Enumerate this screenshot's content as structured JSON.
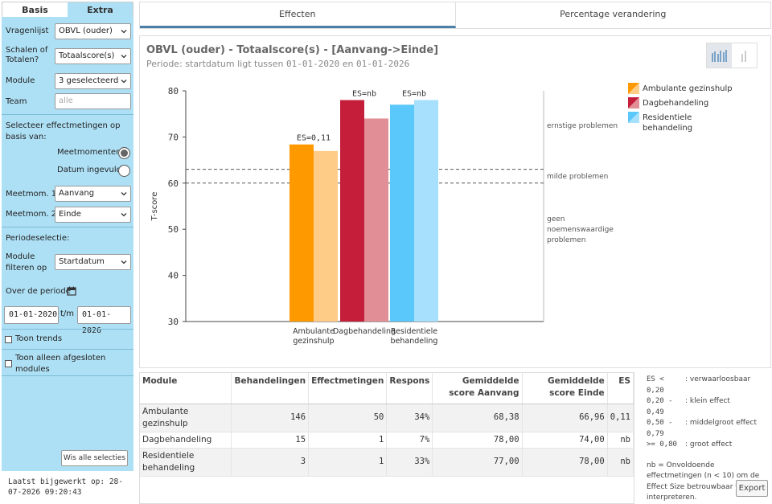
{
  "sidebar": {
    "tabs": [
      "Basis",
      "Extra"
    ],
    "vragenlijst_label": "Vragenlijst",
    "vragenlijst_value": "OBVL (ouder)",
    "schalen_label": "Schalen of Totalen?",
    "schalen_value": "Totaalscore(s)",
    "module_label": "Module",
    "module_value": "3 geselecteerd",
    "team_label": "Team",
    "team_placeholder": "alle",
    "effect_basis_label": "Selecteer effectmetingen op basis van:",
    "radio_meetmomenten": "Meetmomenten",
    "radio_datum": "Datum ingevuld",
    "meetmom1_label": "Meetmom. 1",
    "meetmom1_value": "Aanvang",
    "meetmom2_label": "Meetmom. 2",
    "meetmom2_value": "Einde",
    "periodeselectie_label": "Periodeselectie:",
    "module_filter_label": "Module filteren op",
    "module_filter_value": "Startdatum",
    "over_periode_label": "Over de periode",
    "date_from": "01-01-2020",
    "date_sep": "t/m",
    "date_to": "01-01-2026",
    "toon_trends": "Toon trends",
    "toon_afgesloten": "Toon alleen afgesloten modules",
    "clear_button": "Wis alle selecties",
    "last_updated": "Laatst bijgewerkt op: 28-07-2026 09:20:43"
  },
  "top_tabs": [
    "Effecten",
    "Percentage verandering"
  ],
  "chart_panel": {
    "title": "OBVL (ouder) - Totaalscore(s) - [Aanvang->Einde]",
    "subtitle_prefix": "Periode: startdatum ligt tussen ",
    "subtitle_from": "01-01-2020",
    "subtitle_mid": " en ",
    "subtitle_to": "01-01-2026"
  },
  "chart_data": {
    "type": "bar",
    "ylabel": "T-score",
    "ylim": [
      30,
      80
    ],
    "yticks": [
      30,
      40,
      50,
      60,
      70,
      80
    ],
    "categories": [
      "Ambulante gezinshulp",
      "Dagbehandeling",
      "Residentiele behandeling"
    ],
    "category_labels": [
      [
        "Ambulante",
        "gezinshulp"
      ],
      [
        "Dagbehandeling"
      ],
      [
        "Residentiele",
        "behandeling"
      ]
    ],
    "series": [
      {
        "name": "Aanvang",
        "values": [
          68.38,
          78.0,
          77.0
        ]
      },
      {
        "name": "Einde",
        "values": [
          66.96,
          74.0,
          78.0
        ]
      }
    ],
    "es_labels": [
      "ES=0,11",
      "ES=nb",
      "ES=nb"
    ],
    "colors": {
      "Ambulante gezinshulp": [
        "#ff9900",
        "#ffcc88"
      ],
      "Dagbehandeling": [
        "#c41e3a",
        "#e18e97"
      ],
      "Residentiele behandeling": [
        "#5ac8fa",
        "#a6e0fc"
      ]
    },
    "reference_lines": [
      63,
      60
    ],
    "zones": [
      {
        "label": "ernstige problemen",
        "y": 72.5
      },
      {
        "label": "milde problemen",
        "y": 61.5
      },
      {
        "label": "geen noemenswaardige problemen",
        "y": 50
      }
    ],
    "legend": [
      {
        "name": "Ambulante gezinshulp",
        "colors": [
          "#ff9900",
          "#ffcc88"
        ]
      },
      {
        "name": "Dagbehandeling",
        "colors": [
          "#c41e3a",
          "#e18e97"
        ]
      },
      {
        "name": "Residentiele behandeling",
        "colors": [
          "#5ac8fa",
          "#a6e0fc"
        ]
      }
    ],
    "legend_position": "top-right",
    "grid": false
  },
  "table": {
    "headers": [
      "Module",
      "Behandelingen",
      "Effectmetingen",
      "Respons",
      "Gemiddelde score Aanvang",
      "Gemiddelde score Einde",
      "ES"
    ],
    "rows": [
      [
        "Ambulante gezinshulp",
        "146",
        "50",
        "34%",
        "68,38",
        "66,96",
        "0,11"
      ],
      [
        "Dagbehandeling",
        "15",
        "1",
        "7%",
        "78,00",
        "74,00",
        "nb"
      ],
      [
        "Residentiele behandeling",
        "3",
        "1",
        "33%",
        "77,00",
        "78,00",
        "nb"
      ]
    ]
  },
  "notes": {
    "es_legend": [
      [
        "ES < 0,20",
        ": verwaarloosbaar"
      ],
      [
        "0,20 - 0,49",
        ": klein effect"
      ],
      [
        "0,50 - 0,79",
        ": middelgroot effect"
      ],
      [
        ">= 0,80",
        ": groot effect"
      ]
    ],
    "nb_note": "nb = Onvoldoende effectmetingen (n < 10) om de Effect Size betrouwbaar te interpreteren.",
    "export_button": "Export"
  }
}
